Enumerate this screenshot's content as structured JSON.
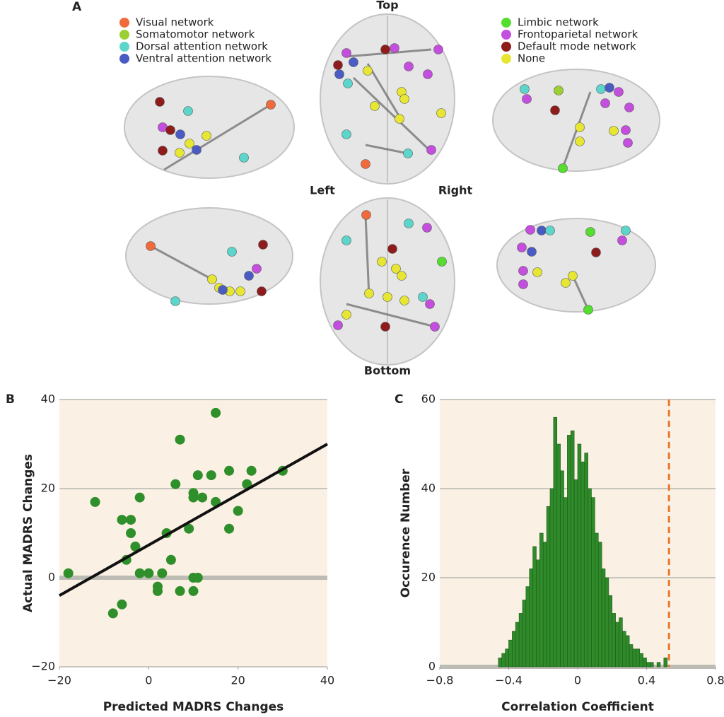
{
  "panel_a": {
    "label": "A",
    "legend": [
      {
        "name": "Visual network",
        "color": "#f06a3c"
      },
      {
        "name": "Somatomotor network",
        "color": "#9ccf32"
      },
      {
        "name": "Dorsal attention network",
        "color": "#5cd6cb"
      },
      {
        "name": "Ventral attention network",
        "color": "#4a5cc4"
      },
      {
        "name": "Limbic network",
        "color": "#55de2e"
      },
      {
        "name": "Frontoparietal network",
        "color": "#c44ede"
      },
      {
        "name": "Default mode network",
        "color": "#8e1c1c"
      },
      {
        "name": "None",
        "color": "#e6e633"
      }
    ],
    "views": {
      "top": "Top",
      "left": "Left",
      "right": "Right",
      "bottom": "Bottom"
    }
  },
  "chart_data": [
    {
      "type": "scatter",
      "panel": "B",
      "xlabel": "Predicted MADRS Changes",
      "ylabel": "Actual MADRS Changes",
      "color": "#2f8f2a",
      "x": [
        -18,
        -12,
        -8,
        -6,
        -6,
        -5,
        -4,
        -4,
        -3,
        -2,
        -2,
        0,
        2,
        2,
        3,
        4,
        5,
        6,
        7,
        7,
        9,
        10,
        10,
        10,
        10,
        11,
        11,
        12,
        14,
        15,
        15,
        18,
        18,
        20,
        22,
        23,
        30
      ],
      "y": [
        1,
        17,
        -8,
        -6,
        13,
        4,
        10,
        13,
        7,
        1,
        18,
        1,
        -3,
        -2,
        1,
        10,
        4,
        21,
        31,
        -3,
        11,
        19,
        18,
        0,
        -3,
        0,
        23,
        18,
        23,
        17,
        37,
        24,
        11,
        15,
        21,
        24,
        24
      ],
      "fit_line": {
        "x": [
          -20,
          40
        ],
        "y": [
          -4,
          30
        ],
        "color": "#111111"
      },
      "xlim": [
        -20,
        40
      ],
      "ylim": [
        -20,
        40
      ],
      "xticks": [
        {
          "value": -20,
          "label": "−20"
        },
        0,
        20,
        40
      ],
      "yticks": [
        {
          "value": -20,
          "label": "−20"
        },
        0,
        20,
        40
      ],
      "grid": true
    },
    {
      "type": "histogram",
      "panel": "C",
      "xlabel": "Correlation Coefficient",
      "ylabel": "Occurence Number",
      "color": "#2f8a2a",
      "bins": [
        -0.46,
        -0.44,
        -0.42,
        -0.4,
        -0.38,
        -0.36,
        -0.34,
        -0.32,
        -0.3,
        -0.28,
        -0.26,
        -0.24,
        -0.22,
        -0.2,
        -0.18,
        -0.16,
        -0.14,
        -0.12,
        -0.1,
        -0.08,
        -0.06,
        -0.04,
        -0.02,
        0.0,
        0.02,
        0.04,
        0.06,
        0.08,
        0.1,
        0.12,
        0.14,
        0.16,
        0.18,
        0.2,
        0.22,
        0.24,
        0.26,
        0.28,
        0.3,
        0.32,
        0.34,
        0.36,
        0.38,
        0.4,
        0.42,
        0.44,
        0.46,
        0.48,
        0.5,
        0.52
      ],
      "counts": [
        2,
        3,
        4,
        6,
        8,
        10,
        12,
        15,
        18,
        22,
        27,
        24,
        30,
        28,
        36,
        40,
        56,
        50,
        44,
        38,
        52,
        53,
        42,
        50,
        46,
        48,
        40,
        38,
        30,
        28,
        22,
        20,
        16,
        12,
        10,
        11,
        8,
        7,
        5,
        4,
        4,
        3,
        2,
        1,
        1,
        0,
        1,
        0,
        2
      ],
      "reference_line": {
        "value": 0.53,
        "color": "#e8782e"
      },
      "xlim": [
        -0.8,
        0.8
      ],
      "ylim": [
        0,
        60
      ],
      "xticks": [
        {
          "value": -0.8,
          "label": "−0.8"
        },
        {
          "value": -0.4,
          "label": "−0.4"
        },
        0,
        0.4,
        0.8
      ],
      "yticks": [
        0,
        20,
        40,
        60
      ],
      "grid": true
    }
  ]
}
